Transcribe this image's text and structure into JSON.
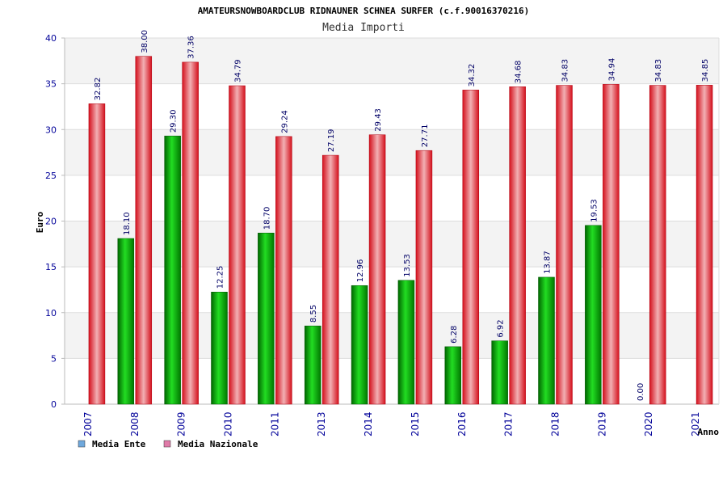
{
  "chart_data": {
    "type": "bar",
    "title": "AMATEURSNOWBOARDCLUB RIDNAUNER SCHNEA SURFER (c.f.90016370216)",
    "subtitle": "Media Importi",
    "xlabel": "Anno",
    "ylabel": "Euro",
    "ylim": [
      0,
      40
    ],
    "yticks": [
      0,
      5,
      10,
      15,
      20,
      25,
      30,
      35,
      40
    ],
    "grid": true,
    "legend_position": "bottom-left",
    "categories": [
      "2007",
      "2008",
      "2009",
      "2010",
      "2011",
      "2013",
      "2014",
      "2015",
      "2016",
      "2017",
      "2018",
      "2019",
      "2020",
      "2021"
    ],
    "series": [
      {
        "name": "Media Ente",
        "color": "#00aa00",
        "legend_color": "#6fa8dc",
        "values": [
          null,
          18.1,
          29.3,
          12.25,
          18.7,
          8.55,
          12.96,
          13.53,
          6.28,
          6.92,
          13.87,
          19.53,
          0.0,
          null
        ],
        "labels": [
          "",
          "18.10",
          "29.30",
          "12.25",
          "18.70",
          "8.55",
          "12.96",
          "13.53",
          "6.28",
          "6.92",
          "13.87",
          "19.53",
          "0.00",
          ""
        ]
      },
      {
        "name": "Media Nazionale",
        "color": "#e8202a",
        "legend_color": "#e07ba8",
        "values": [
          32.82,
          38.0,
          37.36,
          34.79,
          29.24,
          27.19,
          29.43,
          27.71,
          34.32,
          34.68,
          34.83,
          34.94,
          34.83,
          34.85
        ],
        "labels": [
          "32.82",
          "38.00",
          "37.36",
          "34.79",
          "29.24",
          "27.19",
          "29.43",
          "27.71",
          "34.32",
          "34.68",
          "34.83",
          "34.94",
          "34.83",
          "34.85"
        ]
      }
    ]
  }
}
